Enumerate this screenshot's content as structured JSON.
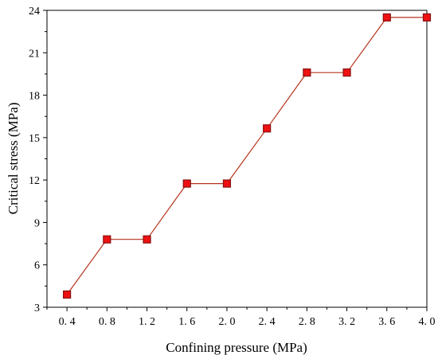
{
  "chart_data": {
    "type": "line",
    "xlabel": "Confining pressure (MPa)",
    "ylabel": "Critical stress (MPa)",
    "xlim": [
      0.2,
      4.0
    ],
    "ylim": [
      3,
      24
    ],
    "x_ticks": [
      0.4,
      0.8,
      1.2,
      1.6,
      2.0,
      2.4,
      2.8,
      3.2,
      3.6,
      4.0
    ],
    "x_tick_labels": [
      "0. 4",
      "0. 8",
      "1. 2",
      "1. 6",
      "2. 0",
      "2. 4",
      "2. 8",
      "3. 2",
      "3. 6",
      "4. 0"
    ],
    "y_ticks": [
      3,
      6,
      9,
      12,
      15,
      18,
      21,
      24
    ],
    "y_tick_labels": [
      "3",
      "6",
      "9",
      "12",
      "15",
      "18",
      "21",
      "24"
    ],
    "grid": false,
    "legend": "none",
    "series": [
      {
        "x": [
          0.4,
          0.8,
          1.2,
          1.6,
          2.0,
          2.4,
          2.8,
          3.2,
          3.6,
          4.0
        ],
        "y": [
          3.9,
          7.8,
          7.8,
          11.75,
          11.75,
          15.65,
          19.6,
          19.6,
          23.5,
          23.5
        ],
        "line_color": "#b5331c",
        "marker": "square",
        "marker_fill": "#ee1111",
        "marker_edge": "#8a1010"
      }
    ]
  }
}
